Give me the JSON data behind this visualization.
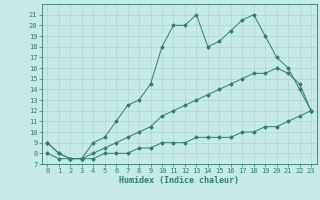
{
  "xlabel": "Humidex (Indice chaleur)",
  "bg_color": "#c5eae8",
  "line_color": "#2d7d74",
  "grid_color": "#afd6d3",
  "x_vals": [
    0,
    1,
    2,
    3,
    4,
    5,
    6,
    7,
    8,
    9,
    10,
    11,
    12,
    13,
    14,
    15,
    16,
    17,
    18,
    19,
    20,
    21,
    22,
    23
  ],
  "curve1": [
    9.0,
    8.0,
    7.5,
    7.5,
    9.0,
    9.5,
    11.0,
    12.5,
    13.0,
    14.5,
    18.0,
    20.0,
    20.0,
    21.0,
    18.0,
    18.5,
    19.5,
    20.5,
    21.0,
    19.0,
    17.0,
    16.0,
    14.0,
    12.0
  ],
  "curve2": [
    9.0,
    8.0,
    7.5,
    7.5,
    8.0,
    8.5,
    9.0,
    9.5,
    10.0,
    10.5,
    11.5,
    12.0,
    12.5,
    13.0,
    13.5,
    14.0,
    14.5,
    15.0,
    15.5,
    15.5,
    16.0,
    15.5,
    14.5,
    12.0
  ],
  "curve3": [
    8.0,
    7.5,
    7.5,
    7.5,
    7.5,
    8.0,
    8.0,
    8.0,
    8.5,
    8.5,
    9.0,
    9.0,
    9.0,
    9.5,
    9.5,
    9.5,
    9.5,
    10.0,
    10.0,
    10.5,
    10.5,
    11.0,
    11.5,
    12.0
  ],
  "ylim": [
    7,
    22
  ],
  "xlim": [
    -0.5,
    23.5
  ],
  "yticks": [
    7,
    8,
    9,
    10,
    11,
    12,
    13,
    14,
    15,
    16,
    17,
    18,
    19,
    20,
    21
  ],
  "xticks": [
    0,
    1,
    2,
    3,
    4,
    5,
    6,
    7,
    8,
    9,
    10,
    11,
    12,
    13,
    14,
    15,
    16,
    17,
    18,
    19,
    20,
    21,
    22,
    23
  ],
  "tick_fontsize": 5,
  "xlabel_fontsize": 6
}
